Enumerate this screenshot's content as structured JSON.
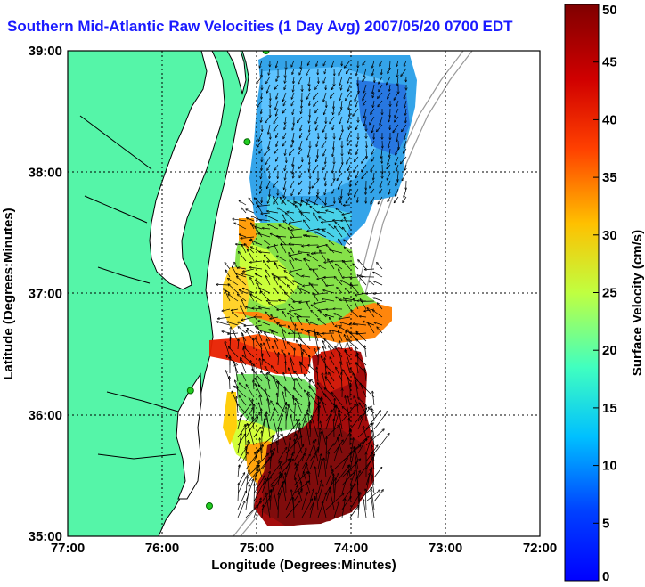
{
  "title": "Southern Mid-Atlantic Raw Velocities (1 Day Avg) 2007/05/20 0700 EDT",
  "axes": {
    "xlabel": "Longitude (Degrees:Minutes)",
    "ylabel": "Latitude (Degrees:Minutes)",
    "xticks": [
      "77:00",
      "76:00",
      "75:00",
      "74:00",
      "73:00",
      "72:00"
    ],
    "yticks": [
      "39:00",
      "38:00",
      "37:00",
      "36:00",
      "35:00"
    ],
    "xlim": [
      -77,
      -72
    ],
    "ylim": [
      35,
      39
    ],
    "grid": "dotted"
  },
  "colorbar": {
    "label": "Surface Velocity (cm/s)",
    "ticks": [
      "0",
      "5",
      "10",
      "15",
      "20",
      "25",
      "30",
      "35",
      "40",
      "45",
      "50"
    ],
    "range": [
      0,
      50
    ],
    "colormap": "jet"
  },
  "colors": {
    "land": "#55f5a8",
    "ocean": "#ffffff",
    "title": "#1a1aff",
    "coast": "#000000",
    "bathymetry": "#999999",
    "station": "#22cc22"
  },
  "stations": [
    {
      "name": "station-1",
      "lon": -74.9,
      "lat": 39.0
    },
    {
      "name": "station-2",
      "lon": -75.1,
      "lat": 38.25
    },
    {
      "name": "station-3",
      "lon": -75.7,
      "lat": 36.2
    },
    {
      "name": "station-4",
      "lon": -75.5,
      "lat": 35.25
    }
  ]
}
